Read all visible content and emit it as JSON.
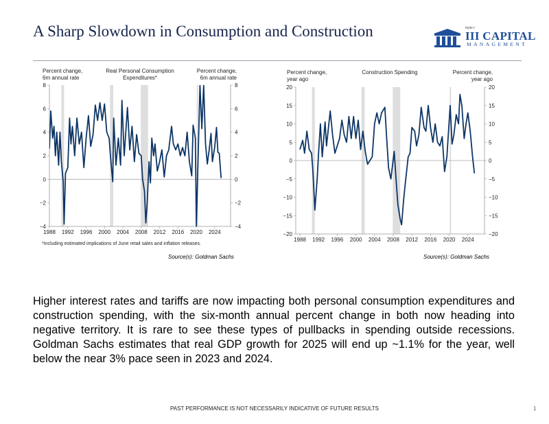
{
  "title": "A Sharp Slowdown in Consumption and Construction",
  "logo": {
    "small": "triple-i",
    "name": "III CAPITAL",
    "sub": "MANAGEMENT"
  },
  "colors": {
    "line": "#0d3566",
    "recession": "#dedede",
    "title": "#17244a",
    "logo": "#1f4e9a"
  },
  "chart_data": [
    {
      "type": "line",
      "title": "Real Personal Consumption Expenditures*",
      "ylabel_left": "Percent change, 6m annual rate",
      "ylabel_right": "Percent change, 6m annual rate",
      "ylim": [
        -4,
        8
      ],
      "yticks": [
        -4,
        -2,
        0,
        2,
        4,
        6,
        8
      ],
      "xticks": [
        1988,
        1992,
        1996,
        2000,
        2004,
        2008,
        2012,
        2016,
        2020,
        2024
      ],
      "xlim": [
        1988,
        2027.5
      ],
      "footnote": "*Including estimated implications of June retail sales and inflation releases.",
      "source": "Source(s): Goldman Sachs",
      "recessions": [
        [
          1990.6,
          1991.2
        ],
        [
          2001.2,
          2001.9
        ],
        [
          2007.9,
          2009.5
        ],
        [
          2020.1,
          2020.4
        ]
      ],
      "series": [
        {
          "name": "Real PCE",
          "x": [
            1988,
            1988.3,
            1988.7,
            1989,
            1989.3,
            1989.6,
            1990,
            1990.3,
            1990.6,
            1991.0,
            1991.2,
            1991.5,
            1992,
            1992.4,
            1992.7,
            1993,
            1993.5,
            1994,
            1994.5,
            1995,
            1995.5,
            1996,
            1996.5,
            1997,
            1997.5,
            1998,
            1998.5,
            1999,
            1999.5,
            2000,
            2000.5,
            2001,
            2001.5,
            2001.8,
            2002,
            2002.5,
            2003,
            2003.5,
            2003.8,
            2004.3,
            2005,
            2005.5,
            2006,
            2006.5,
            2007,
            2007.5,
            2008,
            2008.3,
            2008.7,
            2009,
            2009.3,
            2009.7,
            2010,
            2010.3,
            2010.7,
            2011,
            2011.5,
            2012,
            2012.5,
            2013,
            2013.5,
            2014,
            2014.6,
            2015,
            2015.5,
            2016,
            2016.5,
            2017,
            2017.5,
            2018,
            2018.5,
            2019,
            2019.3,
            2019.8,
            2020.0,
            2020.8,
            2021.2,
            2021.6,
            2022,
            2022.4,
            2022.8,
            2023.2,
            2023.5,
            2024,
            2024.4,
            2024.7,
            2025,
            2025.4
          ],
          "y": [
            2.6,
            5.8,
            3.5,
            4.5,
            2,
            4,
            1.2,
            4,
            1.5,
            -0.2,
            -3.8,
            0.5,
            1,
            5.2,
            3,
            4.5,
            2,
            5.2,
            3,
            4,
            1,
            3.5,
            5.4,
            2.8,
            3.8,
            6.3,
            5,
            6.5,
            5,
            6.4,
            4,
            3.5,
            1,
            -0.2,
            5.2,
            1.2,
            3.5,
            1.2,
            6.7,
            2,
            6.1,
            2.5,
            4.5,
            1.5,
            3.8,
            2.2,
            2,
            0,
            -1,
            -3.7,
            -2,
            1.5,
            -0.3,
            3.5,
            2,
            3,
            0.7,
            1.5,
            2.5,
            0.2,
            2,
            2.5,
            4.5,
            3,
            2.5,
            3,
            2,
            2.7,
            2,
            4,
            1.5,
            0.3,
            4.6,
            3.5,
            -4,
            8,
            4.3,
            8,
            3,
            1.3,
            2.5,
            3.9,
            1.5,
            2.7,
            4.4,
            2.3,
            2.2,
            0.1
          ]
        }
      ]
    },
    {
      "type": "line",
      "title": "Construction Spending",
      "ylabel_left": "Percent change, year ago",
      "ylabel_right": "Percent change, year ago",
      "ylim": [
        -20,
        20
      ],
      "yticks": [
        -20,
        -15,
        -10,
        -5,
        0,
        5,
        10,
        15,
        20
      ],
      "xticks": [
        1988,
        1992,
        1996,
        2000,
        2004,
        2008,
        2012,
        2016,
        2020,
        2024
      ],
      "xlim": [
        1988,
        2027.5
      ],
      "source": "Source(s): Goldman Sachs",
      "recessions": [
        [
          1990.6,
          1991.2
        ],
        [
          2001.2,
          2001.9
        ],
        [
          2007.9,
          2009.5
        ],
        [
          2020.1,
          2020.4
        ]
      ],
      "series": [
        {
          "name": "Construction spending",
          "x": [
            1988,
            1988.6,
            1989,
            1989.5,
            1990,
            1990.5,
            1990.8,
            1991.2,
            1991.7,
            1992,
            1992.4,
            1992.8,
            1993.4,
            1993.7,
            1994.5,
            1995,
            1995.5,
            1996,
            1996.5,
            1997,
            1997.5,
            1998,
            1998.5,
            1999,
            1999.5,
            2000,
            2000.5,
            2001,
            2001.5,
            2002,
            2002.5,
            2003,
            2003.5,
            2004,
            2004.5,
            2005,
            2005.5,
            2006.2,
            2006.6,
            2007,
            2007.5,
            2008.2,
            2008.6,
            2009,
            2009.5,
            2009.8,
            2010.2,
            2010.6,
            2011.2,
            2011.6,
            2012,
            2012.6,
            2013,
            2013.5,
            2014,
            2014.6,
            2015,
            2015.5,
            2016,
            2016.5,
            2017,
            2017.5,
            2018,
            2018.5,
            2019,
            2019.5,
            2020.2,
            2020.6,
            2021,
            2021.5,
            2022,
            2022.3,
            2022.7,
            2023.2,
            2023.6,
            2024,
            2024.5,
            2025,
            2025.4
          ],
          "y": [
            3,
            5.5,
            2,
            8,
            3,
            2,
            -3,
            -13.5,
            -5,
            2,
            10,
            1,
            10.5,
            4,
            13.5,
            7,
            2,
            4,
            6,
            11,
            7,
            5,
            12,
            6,
            12,
            6,
            11,
            3,
            8,
            2.5,
            -1,
            0,
            1,
            10,
            13,
            10,
            13,
            14.5,
            6,
            -2,
            -5,
            2.5,
            -5,
            -12,
            -16,
            -17.5,
            -11,
            -6,
            1,
            2,
            9,
            8,
            4,
            7,
            14.5,
            9,
            8,
            15,
            9,
            5,
            10,
            5,
            4,
            6.5,
            -3,
            1,
            15,
            4.5,
            7,
            12.5,
            10,
            18,
            15,
            6,
            10,
            13,
            8,
            1,
            -3.5
          ]
        }
      ]
    }
  ],
  "paragraph": "Higher interest rates and tariffs are now impacting both personal consumption expenditures and construction spending, with the six-month annual percent change in both now heading into negative territory. It is rare to see these types of pullbacks in spending outside recessions. Goldman Sachs estimates that real GDP growth for 2025 will end up ~1.1% for the year, well below the near 3% pace seen in 2023 and 2024.",
  "footer": "PAST PERFORMANCE IS NOT NECESSARILY INDICATIVE OF FUTURE RESULTS",
  "page_number": "1"
}
